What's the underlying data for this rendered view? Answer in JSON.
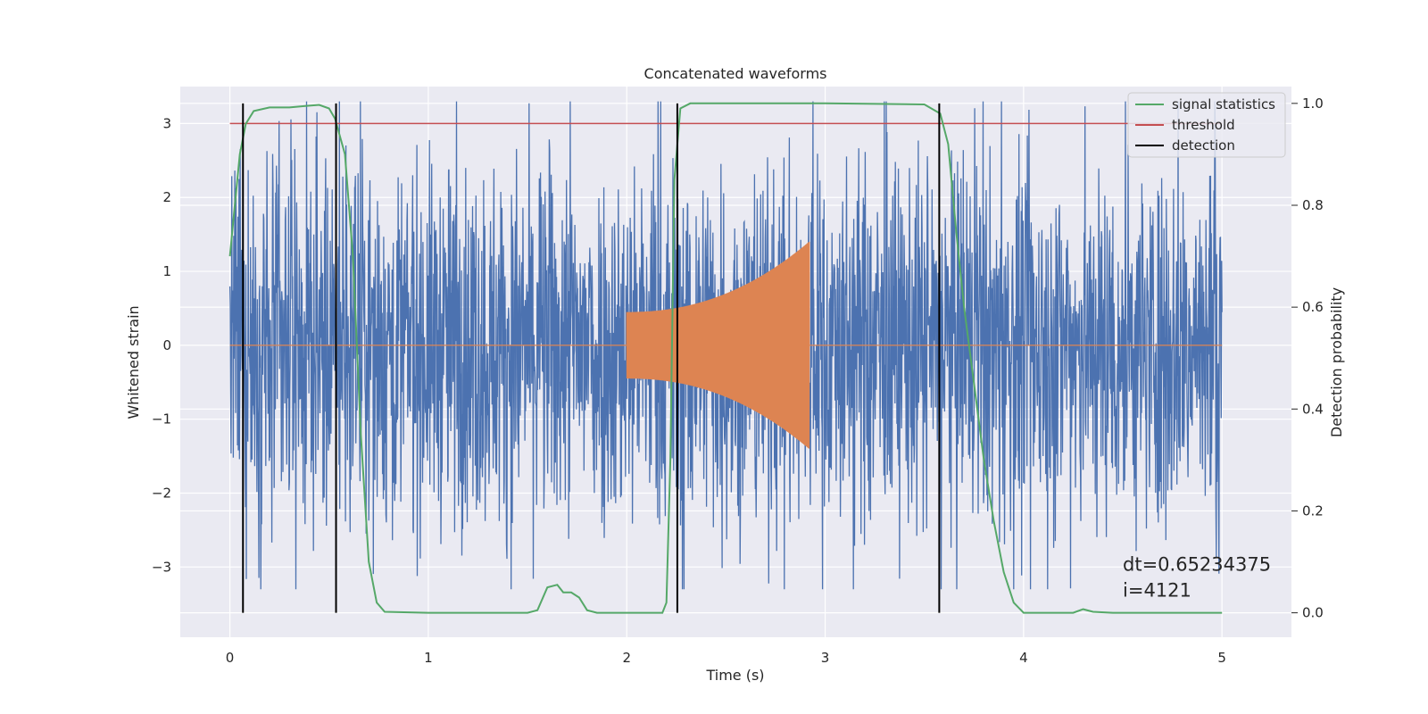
{
  "chart_data": {
    "type": "line",
    "title": "Concatenated waveforms",
    "xlabel": "Time (s)",
    "ylabel": "Whitened strain",
    "y2label": "Detection probability",
    "xlim": [
      -0.25,
      5.35
    ],
    "ylim": [
      -3.95,
      3.5
    ],
    "y2lim": [
      -0.048,
      1.033
    ],
    "xticks": [
      0,
      1,
      2,
      3,
      4,
      5
    ],
    "yticks": [
      -3,
      -2,
      -1,
      0,
      1,
      2,
      3
    ],
    "y2ticks": [
      0.0,
      0.2,
      0.4,
      0.6,
      0.8,
      1.0
    ],
    "xtick_labels": [
      "0",
      "1",
      "2",
      "3",
      "4",
      "5"
    ],
    "ytick_labels": [
      "−3",
      "−2",
      "−1",
      "0",
      "1",
      "2",
      "3"
    ],
    "y2tick_labels": [
      "0.0",
      "0.2",
      "0.4",
      "0.6",
      "0.8",
      "1.0"
    ],
    "grid": true,
    "legend_position": "top-right",
    "background": "#eaeaf2",
    "series": [
      {
        "name": "",
        "kind": "noisy-strain",
        "axis": "left",
        "color": "#4c72b0",
        "x_range": [
          0,
          5
        ],
        "typical_amplitude": 1.6,
        "peak_amplitude": 3.3
      },
      {
        "name": "",
        "kind": "chirp",
        "axis": "left",
        "color": "#dd8452",
        "x_range": [
          0,
          5
        ],
        "chirp_start": 2.0,
        "chirp_end": 2.92,
        "start_amplitude": 0.45,
        "end_amplitude": 1.4
      },
      {
        "name": "signal statistics",
        "axis": "right",
        "color": "#55a868",
        "points": [
          [
            0.0,
            0.7
          ],
          [
            0.02,
            0.78
          ],
          [
            0.05,
            0.9
          ],
          [
            0.08,
            0.96
          ],
          [
            0.12,
            0.985
          ],
          [
            0.2,
            0.992
          ],
          [
            0.3,
            0.992
          ],
          [
            0.38,
            0.995
          ],
          [
            0.45,
            0.997
          ],
          [
            0.5,
            0.99
          ],
          [
            0.53,
            0.97
          ],
          [
            0.58,
            0.9
          ],
          [
            0.62,
            0.7
          ],
          [
            0.66,
            0.35
          ],
          [
            0.7,
            0.1
          ],
          [
            0.74,
            0.02
          ],
          [
            0.78,
            0.002
          ],
          [
            1.0,
            0.0
          ],
          [
            1.5,
            0.0
          ],
          [
            1.55,
            0.005
          ],
          [
            1.6,
            0.05
          ],
          [
            1.65,
            0.055
          ],
          [
            1.68,
            0.04
          ],
          [
            1.72,
            0.04
          ],
          [
            1.76,
            0.03
          ],
          [
            1.8,
            0.005
          ],
          [
            1.85,
            0.0
          ],
          [
            2.18,
            0.0
          ],
          [
            2.2,
            0.02
          ],
          [
            2.22,
            0.3
          ],
          [
            2.24,
            0.85
          ],
          [
            2.27,
            0.99
          ],
          [
            2.32,
            1.0
          ],
          [
            3.0,
            1.0
          ],
          [
            3.5,
            0.998
          ],
          [
            3.58,
            0.98
          ],
          [
            3.62,
            0.92
          ],
          [
            3.66,
            0.75
          ],
          [
            3.7,
            0.6
          ],
          [
            3.75,
            0.45
          ],
          [
            3.8,
            0.3
          ],
          [
            3.85,
            0.18
          ],
          [
            3.9,
            0.08
          ],
          [
            3.95,
            0.02
          ],
          [
            4.0,
            0.0
          ],
          [
            4.25,
            0.0
          ],
          [
            4.3,
            0.007
          ],
          [
            4.35,
            0.002
          ],
          [
            4.45,
            0.0
          ],
          [
            5.0,
            0.0
          ]
        ]
      },
      {
        "name": "threshold",
        "axis": "left",
        "color": "#c44e52",
        "x": [
          0,
          5
        ],
        "y": [
          3,
          3
        ]
      },
      {
        "name": "detection",
        "axis": "right",
        "color": "#000000",
        "vlines_x": [
          0.066,
          0.535,
          2.255,
          3.575
        ],
        "y_range": [
          0.0,
          1.0
        ]
      }
    ],
    "annotations": [
      {
        "text": "dt=0.65234375",
        "x": 4.5,
        "y": -3.05
      },
      {
        "text": " i=4121",
        "x": 4.5,
        "y": -3.4
      }
    ]
  }
}
